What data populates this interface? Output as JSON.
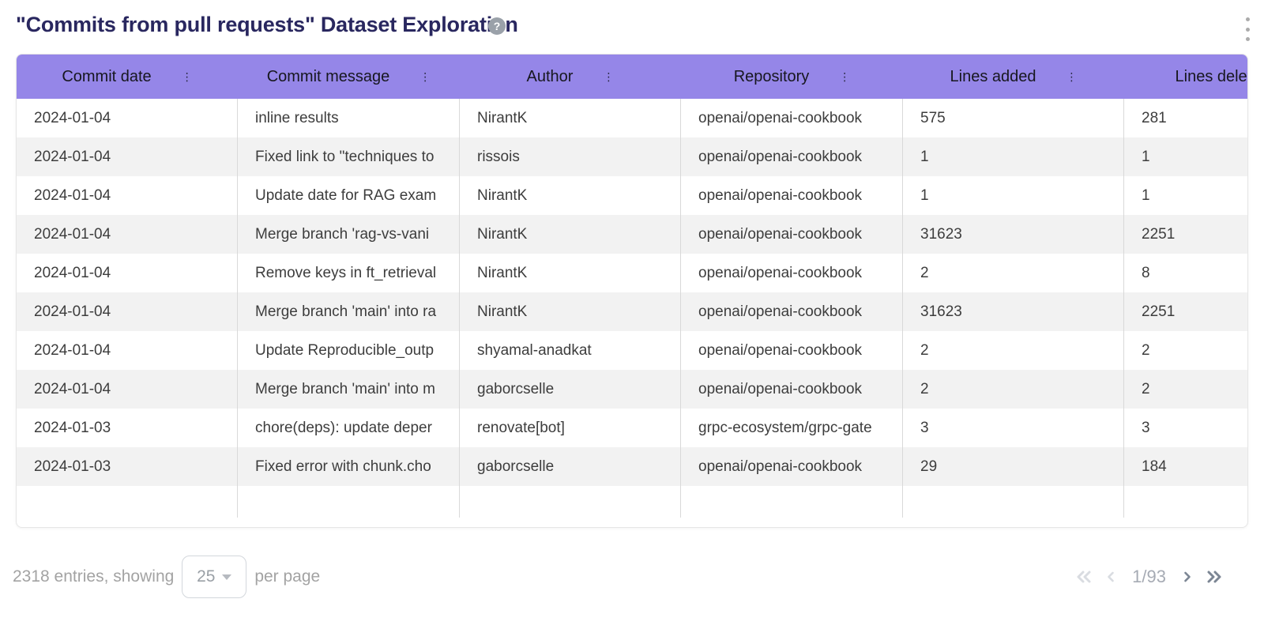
{
  "header": {
    "title": "\"Commits from pull requests\" Dataset Exploration",
    "help_glyph": "?"
  },
  "table": {
    "columns": [
      {
        "label": "Commit date",
        "menu_icon": "⋮"
      },
      {
        "label": "Commit message",
        "menu_icon": "⋮"
      },
      {
        "label": "Author",
        "menu_icon": "⋮"
      },
      {
        "label": "Repository",
        "menu_icon": "⋮"
      },
      {
        "label": "Lines added",
        "menu_icon": "⋮"
      },
      {
        "label": "Lines deleted",
        "menu_icon": "⋮"
      }
    ],
    "rows": [
      {
        "commit_date": "2024-01-04",
        "commit_message": "inline results",
        "author": "NirantK",
        "repository": "openai/openai-cookbook",
        "lines_added": "575",
        "lines_deleted": "281"
      },
      {
        "commit_date": "2024-01-04",
        "commit_message": "Fixed link to \"techniques to",
        "author": "rissois",
        "repository": "openai/openai-cookbook",
        "lines_added": "1",
        "lines_deleted": "1"
      },
      {
        "commit_date": "2024-01-04",
        "commit_message": "Update date for RAG exam",
        "author": "NirantK",
        "repository": "openai/openai-cookbook",
        "lines_added": "1",
        "lines_deleted": "1"
      },
      {
        "commit_date": "2024-01-04",
        "commit_message": "Merge branch 'rag-vs-vani",
        "author": "NirantK",
        "repository": "openai/openai-cookbook",
        "lines_added": "31623",
        "lines_deleted": "2251"
      },
      {
        "commit_date": "2024-01-04",
        "commit_message": "Remove keys in ft_retrieval",
        "author": "NirantK",
        "repository": "openai/openai-cookbook",
        "lines_added": "2",
        "lines_deleted": "8"
      },
      {
        "commit_date": "2024-01-04",
        "commit_message": "Merge branch 'main' into ra",
        "author": "NirantK",
        "repository": "openai/openai-cookbook",
        "lines_added": "31623",
        "lines_deleted": "2251"
      },
      {
        "commit_date": "2024-01-04",
        "commit_message": "Update Reproducible_outp",
        "author": "shyamal-anadkat",
        "repository": "openai/openai-cookbook",
        "lines_added": "2",
        "lines_deleted": "2"
      },
      {
        "commit_date": "2024-01-04",
        "commit_message": "Merge branch 'main' into m",
        "author": "gaborcselle",
        "repository": "openai/openai-cookbook",
        "lines_added": "2",
        "lines_deleted": "2"
      },
      {
        "commit_date": "2024-01-03",
        "commit_message": "chore(deps): update deper",
        "author": "renovate[bot]",
        "repository": "grpc-ecosystem/grpc-gate",
        "lines_added": "3",
        "lines_deleted": "3"
      },
      {
        "commit_date": "2024-01-03",
        "commit_message": "Fixed error with chunk.cho",
        "author": "gaborcselle",
        "repository": "openai/openai-cookbook",
        "lines_added": "29",
        "lines_deleted": "184"
      }
    ]
  },
  "footer": {
    "entries_text": "2318 entries, showing",
    "page_size": "25",
    "per_page_text": "per page",
    "page_indicator": "1/93"
  },
  "colors": {
    "header_bg": "#9586e8",
    "title_text": "#29275f",
    "row_stripe": "#f2f2f2",
    "cell_border": "#d9d9d9",
    "footer_text": "#a3a3a3",
    "pager_disabled": "#d9dce1",
    "pager_enabled": "#7c8694"
  }
}
